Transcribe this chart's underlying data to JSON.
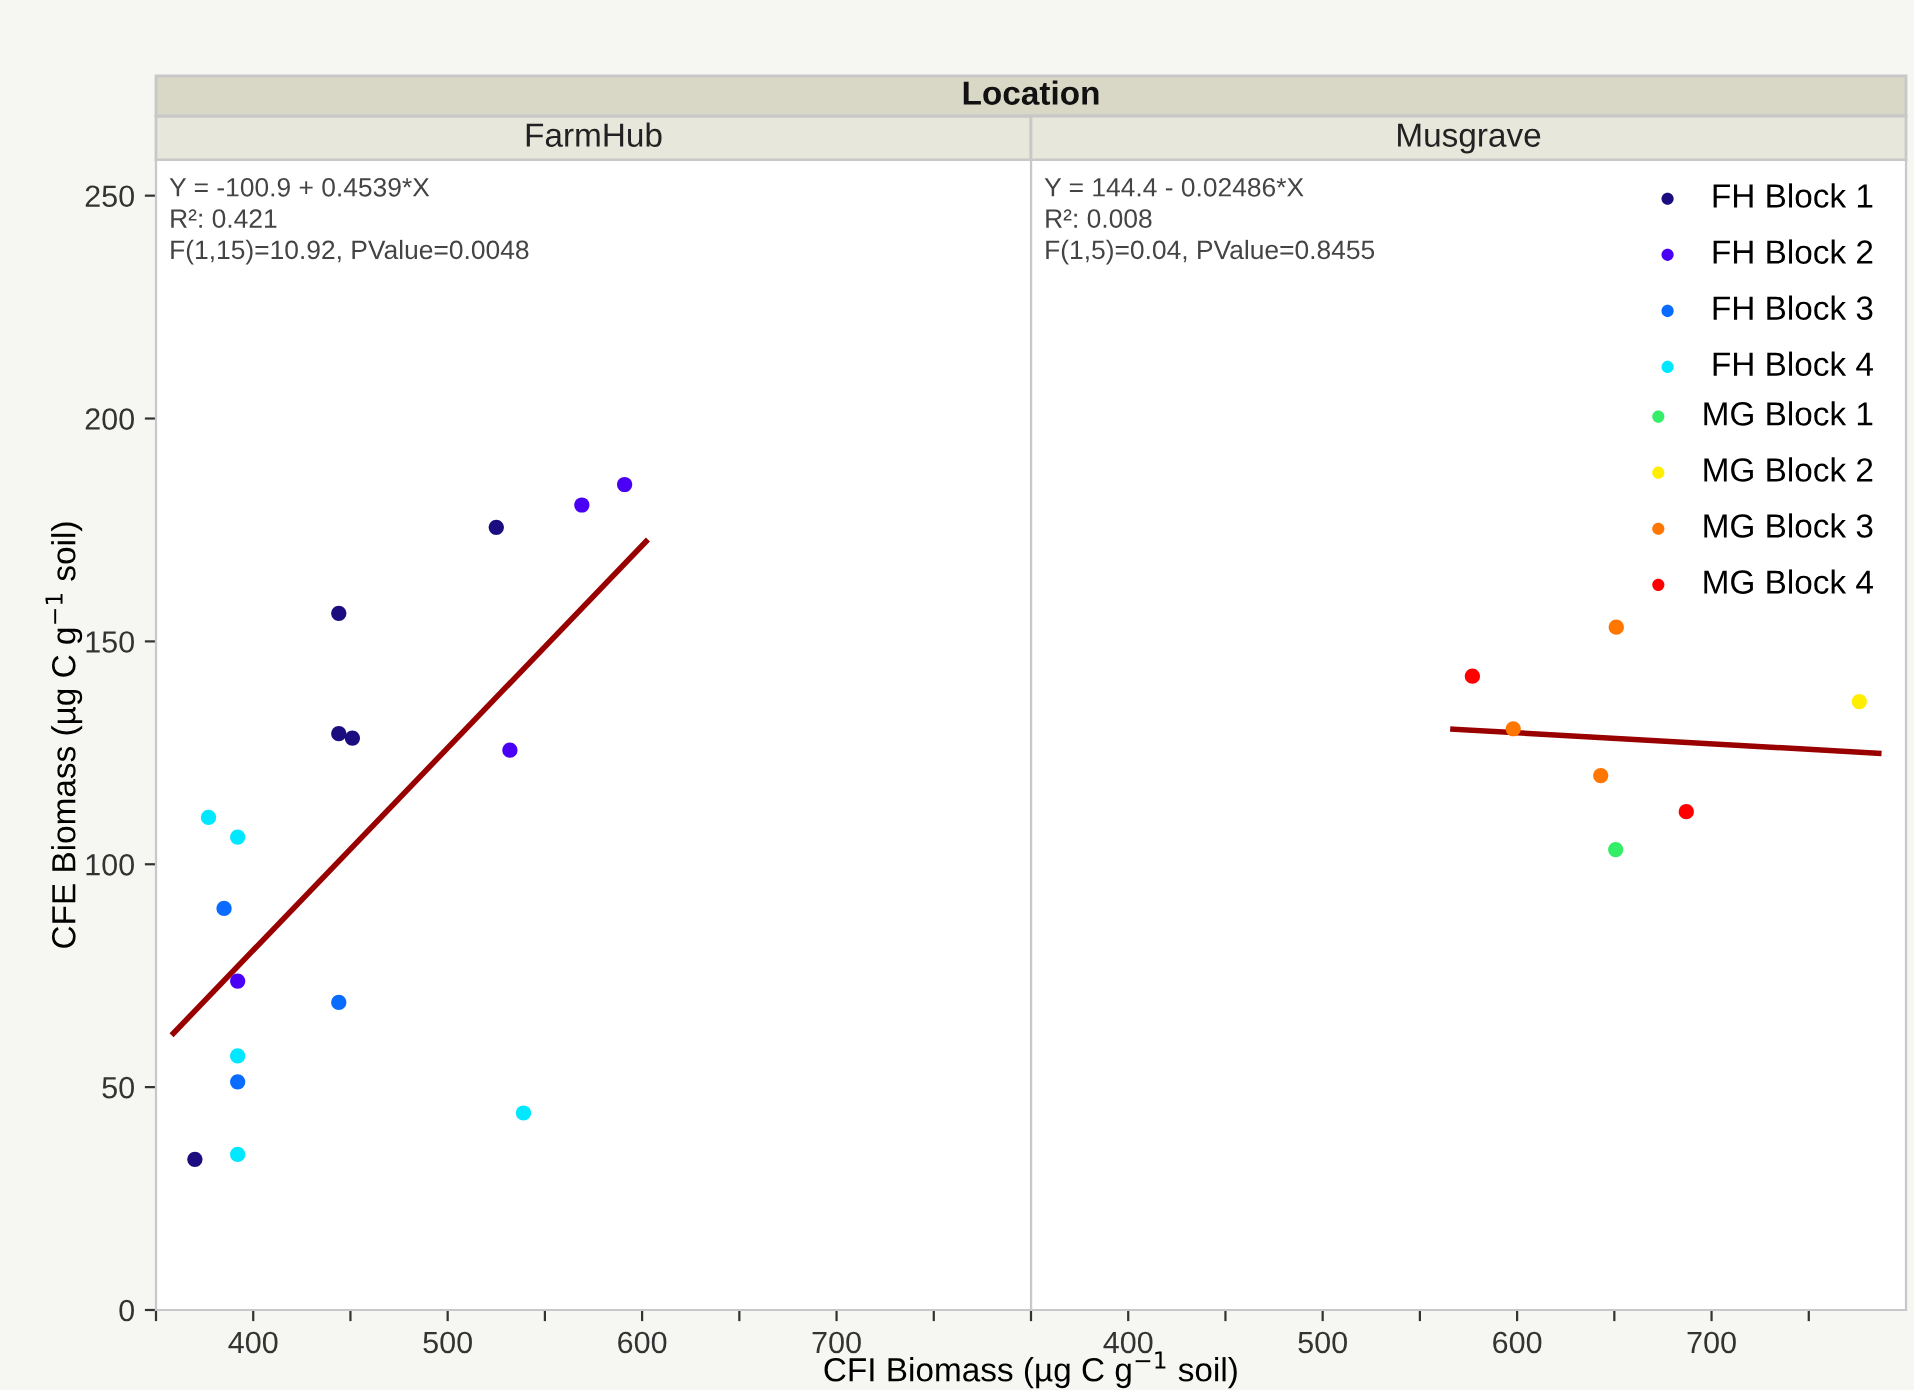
{
  "chart_data": [
    {
      "type": "scatter",
      "title": "Location",
      "subtitle": "FarmHub",
      "ylabel": "CFE Biomass (µg C g$^{−1}$ soil)",
      "xlabel": "CFI Biomass (µg C g$^{−1}$ soil)",
      "xlim": [
        350,
        800
      ],
      "xticks": [
        {
          "value": 350,
          "label": null
        },
        400,
        {
          "value": 450,
          "label": null
        },
        500,
        {
          "value": 550,
          "label": null
        },
        600,
        {
          "value": 650,
          "label": null
        },
        700,
        {
          "value": 750,
          "label": null
        }
      ],
      "ylim": [
        0,
        258
      ],
      "yticks": [
        0,
        50,
        100,
        150,
        200,
        250
      ],
      "grid": false,
      "legend": "top right",
      "marker": "circle",
      "annotations": [
        "Y = -100.9 + 0.4539*X",
        "R²: 0.421",
        "F(1,15)=10.92, PValue=0.0048"
      ],
      "series": [
        {
          "name": "FH Block 1",
          "color": "#1b0c80",
          "x": [
            370,
            444,
            444,
            451,
            525
          ],
          "values": [
            33.8,
            156.3,
            129.3,
            128.3,
            175.6
          ]
        },
        {
          "name": "FH Block 2",
          "color": "#4a00f5",
          "x": [
            392,
            532,
            569,
            591
          ],
          "values": [
            73.8,
            125.6,
            180.6,
            185.2
          ]
        },
        {
          "name": "FH Block 3",
          "color": "#0a6cff",
          "x": [
            392,
            444,
            385
          ],
          "values": [
            51.2,
            69.0,
            90.1
          ]
        },
        {
          "name": "FH Block 4",
          "color": "#00e8ff",
          "x": [
            392,
            392,
            392,
            377,
            539
          ],
          "values": [
            34.9,
            57.0,
            106.1,
            110.5,
            44.2
          ]
        },
        {
          "type": "line",
          "marker": "none",
          "color": "#990000",
          "x": [
            359,
            602
          ],
          "values": [
            62.1,
            172.4
          ]
        }
      ]
    },
    {
      "type": "scatter",
      "subtitle": "Musgrave",
      "xlim": [
        350,
        800
      ],
      "xticks": [
        {
          "value": 350,
          "label": null
        },
        400,
        {
          "value": 450,
          "label": null
        },
        500,
        {
          "value": 550,
          "label": null
        },
        600,
        {
          "value": 650,
          "label": null
        },
        700,
        {
          "value": 750,
          "label": null
        }
      ],
      "ylim": [
        0,
        258
      ],
      "tick_labels": "x",
      "grid": false,
      "legend": "top right",
      "marker": "circle",
      "annotations": [
        "Y = 144.4 - 0.02486*X",
        "R²: 0.008",
        "F(1,5)=0.04, PValue=0.8455"
      ],
      "series": [
        {
          "name": "MG Block 1",
          "color": "#33ee66",
          "x": [
            650.7
          ],
          "values": [
            103.3
          ]
        },
        {
          "name": "MG Block 2",
          "color": "#ffee00",
          "x": [
            776
          ],
          "values": [
            136.5
          ]
        },
        {
          "name": "MG Block 3",
          "color": "#ff7700",
          "x": [
            598,
            643,
            651
          ],
          "values": [
            130.4,
            119.9,
            153.2
          ]
        },
        {
          "name": "MG Block 4",
          "color": "#ff0000",
          "x": [
            577,
            687
          ],
          "values": [
            142.2,
            111.8
          ]
        },
        {
          "type": "line",
          "marker": "none",
          "color": "#990000",
          "x": [
            567,
            786
          ],
          "values": [
            130.3,
            124.9
          ]
        }
      ]
    }
  ]
}
